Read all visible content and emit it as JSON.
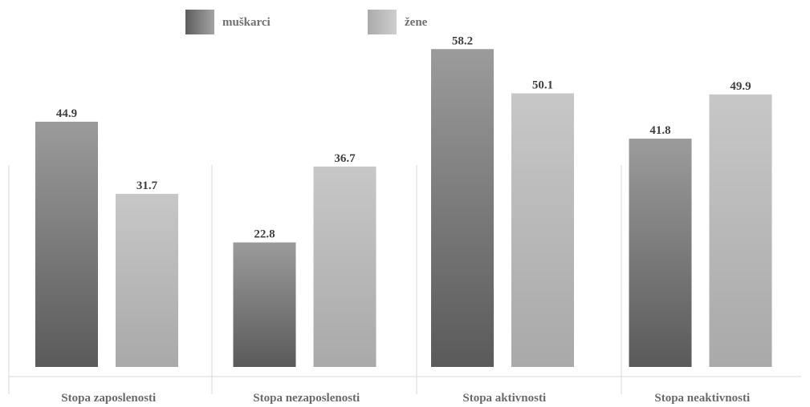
{
  "chart_data": {
    "type": "bar",
    "title": "",
    "xlabel": "",
    "ylabel": "",
    "categories": [
      "Stopa zaposlenosti",
      "Stopa nezaposlenosti",
      "Stopa aktivnosti",
      "Stopa neaktivnosti"
    ],
    "series": [
      {
        "name": "muškarci",
        "values": [
          44.9,
          22.8,
          58.2,
          41.8
        ],
        "color": "#5c5c5c"
      },
      {
        "name": "žene",
        "values": [
          31.7,
          36.7,
          50.1,
          49.9
        ],
        "color": "#b8b8b8"
      }
    ],
    "ylim": [
      0,
      60
    ],
    "grid": false,
    "legend_position": "top-left",
    "value_labels": true
  }
}
